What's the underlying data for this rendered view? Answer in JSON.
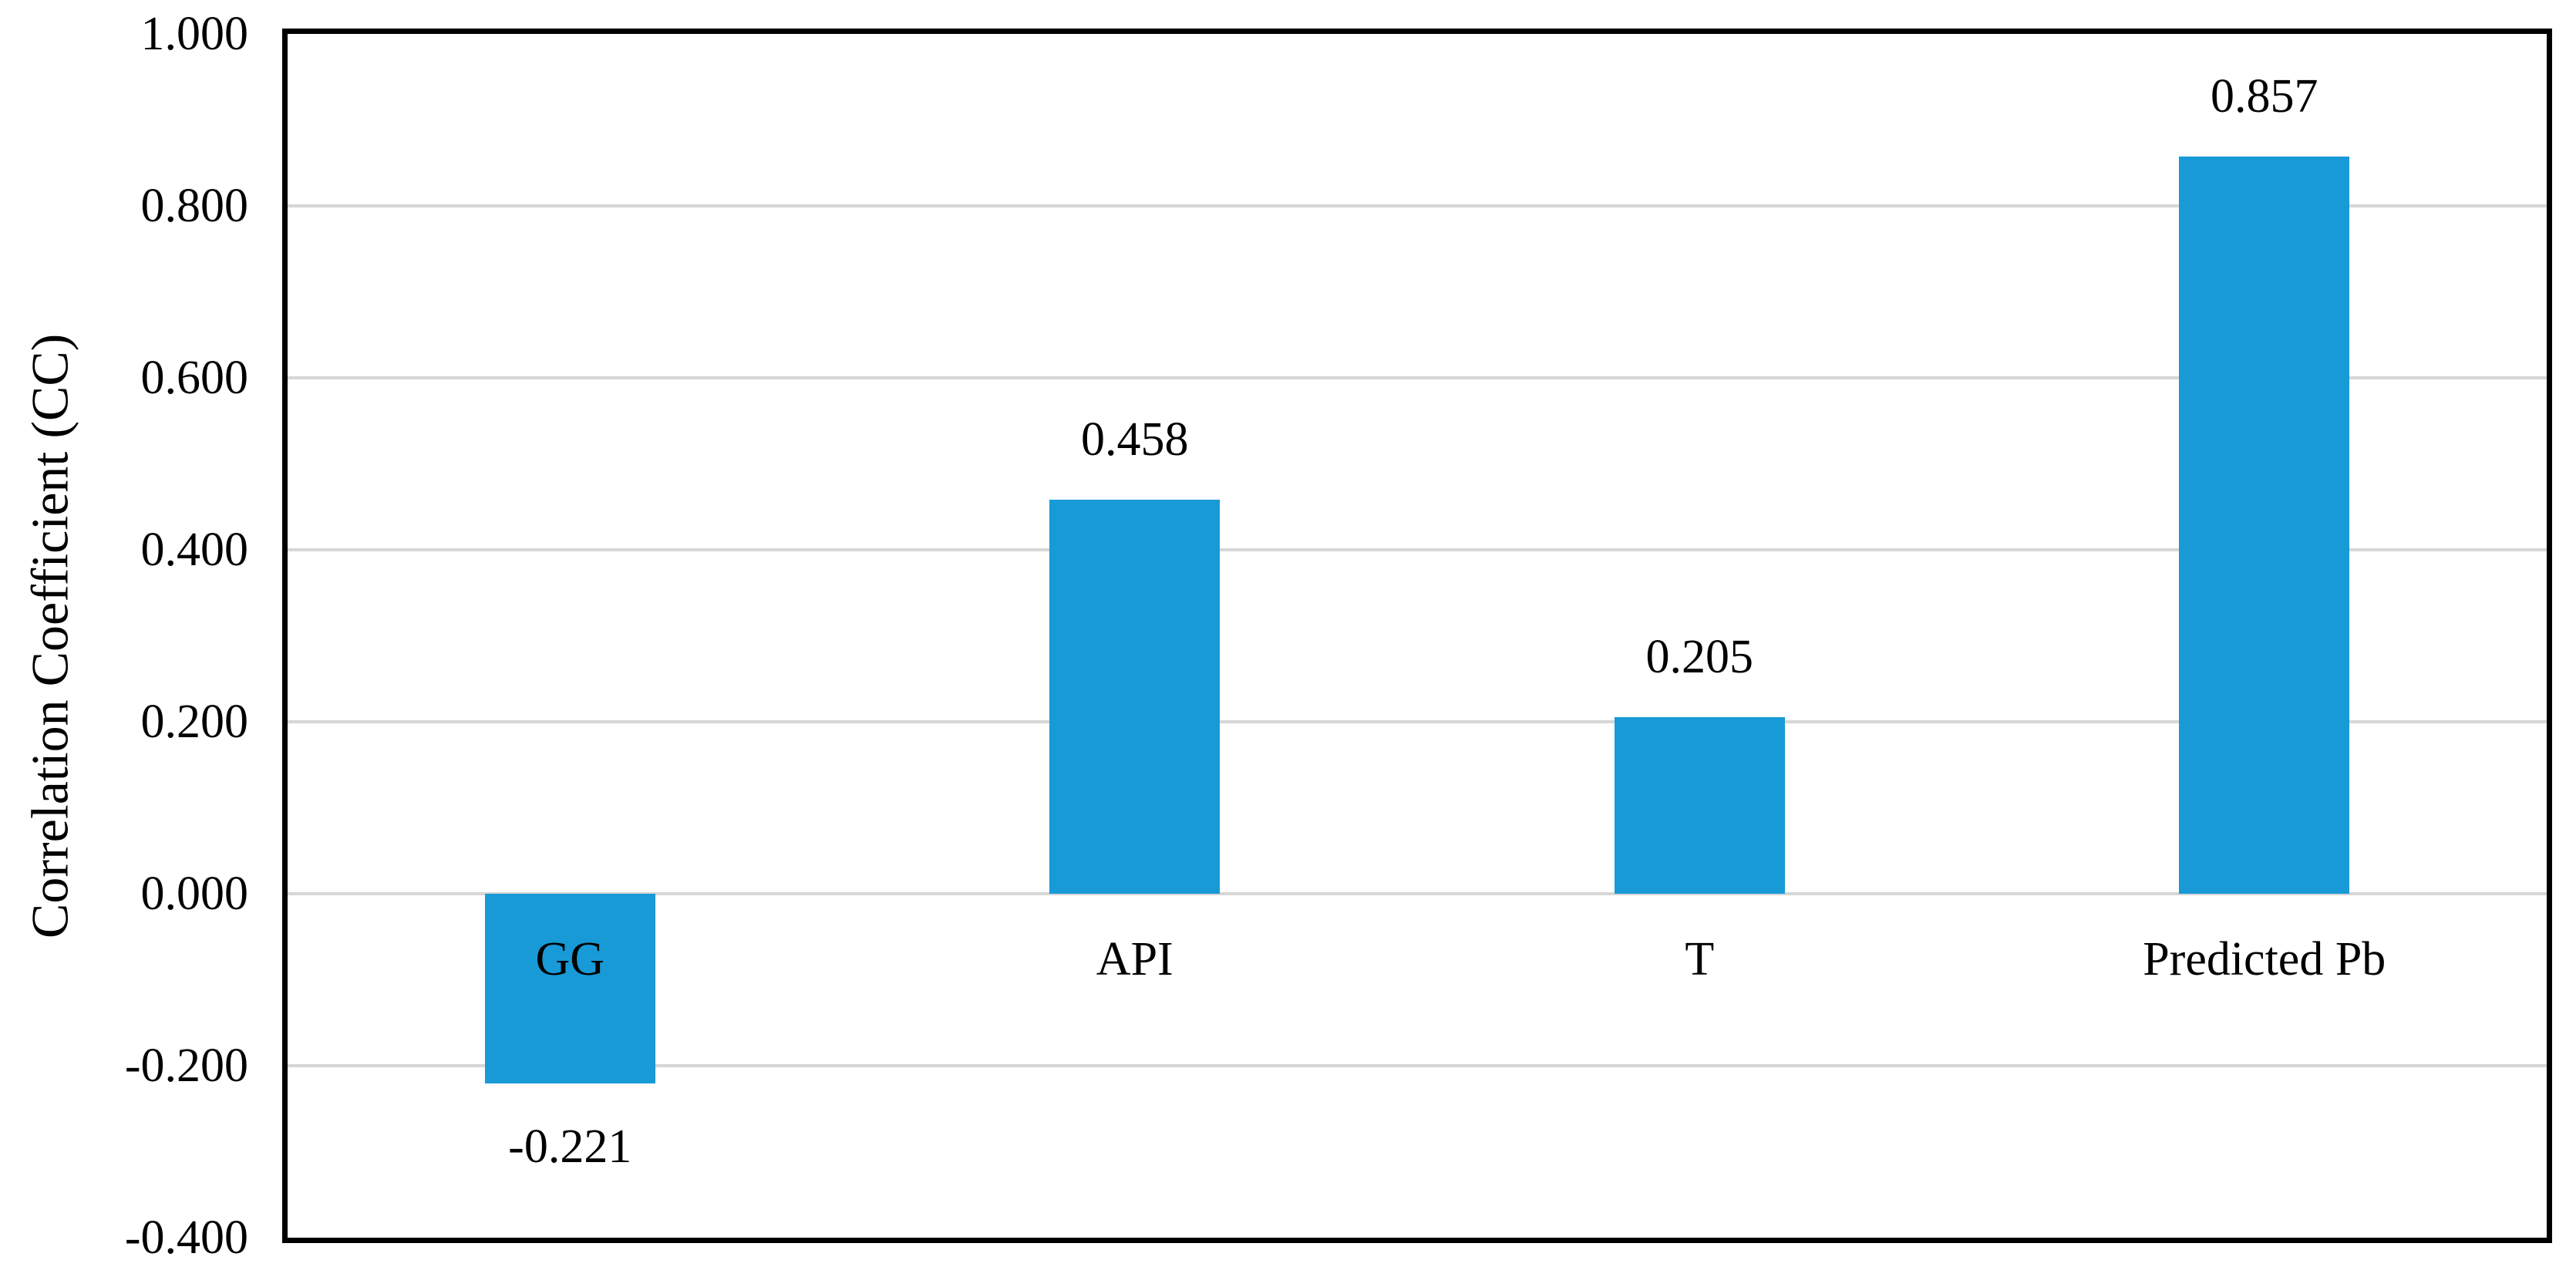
{
  "chart_data": {
    "type": "bar",
    "categories": [
      "GG",
      "API",
      "T",
      "Predicted Pb"
    ],
    "values": [
      -0.221,
      0.458,
      0.205,
      0.857
    ],
    "data_labels": [
      "-0.221",
      "0.458",
      "0.205",
      "0.857"
    ],
    "title": "",
    "xlabel": "",
    "ylabel": "Correlation Coefficient (CC)",
    "ylim": [
      -0.4,
      1.0
    ],
    "ytick_interval": 0.2,
    "ytick_labels": [
      "1.000",
      "0.800",
      "0.600",
      "0.400",
      "0.200",
      "0.000",
      "-0.200",
      "-0.400"
    ],
    "grid": true,
    "legend": false,
    "bar_color": "#189AD7",
    "gridline_color": "#D6D6D6",
    "border_color": "#000000",
    "text_color": "#000000"
  }
}
